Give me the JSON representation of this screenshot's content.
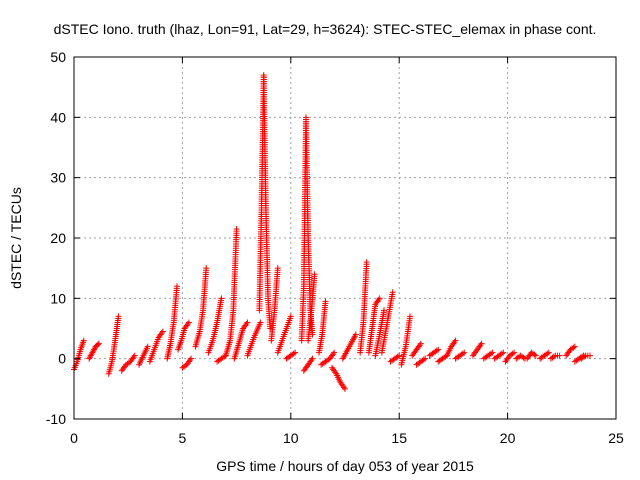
{
  "chart_data": {
    "type": "scatter",
    "title": "dSTEC Iono. truth (lhaz, Lon=91, Lat=29, h=3624): STEC-STEC_elemax in phase cont.",
    "xlabel": "GPS time / hours of day 053 of year 2015",
    "ylabel": "dSTEC  / TECUs",
    "xlim": [
      0,
      25
    ],
    "ylim": [
      -10,
      50
    ],
    "xticks": [
      0,
      5,
      10,
      15,
      20,
      25
    ],
    "yticks": [
      -10,
      0,
      10,
      20,
      30,
      40,
      50
    ],
    "grid": true,
    "marker": "plus",
    "series_color": "#ff0000",
    "arcs": [
      {
        "x": [
          0.0,
          0.15,
          0.3,
          0.45
        ],
        "y": [
          -1.8,
          -0.5,
          1.5,
          3.0
        ]
      },
      {
        "x": [
          0.7,
          0.85,
          1.0,
          1.15
        ],
        "y": [
          0.0,
          1.0,
          2.0,
          2.5
        ]
      },
      {
        "x": [
          1.6,
          1.75,
          1.9,
          2.05
        ],
        "y": [
          -2.5,
          -0.5,
          3.0,
          7.0
        ]
      },
      {
        "x": [
          2.2,
          2.4,
          2.6,
          2.8
        ],
        "y": [
          -2.0,
          -1.0,
          -0.5,
          0.5
        ]
      },
      {
        "x": [
          3.0,
          3.2,
          3.4
        ],
        "y": [
          -1.0,
          0.5,
          2.0
        ]
      },
      {
        "x": [
          3.5,
          3.7,
          3.9,
          4.1
        ],
        "y": [
          -0.5,
          1.5,
          3.5,
          4.5
        ]
      },
      {
        "x": [
          4.3,
          4.45,
          4.6,
          4.75
        ],
        "y": [
          0.0,
          2.5,
          6.0,
          12.0
        ]
      },
      {
        "x": [
          4.8,
          4.95,
          5.1,
          5.3
        ],
        "y": [
          1.5,
          3.0,
          5.0,
          6.0
        ]
      },
      {
        "x": [
          5.0,
          5.2,
          5.4
        ],
        "y": [
          -1.5,
          -1.0,
          0.0
        ]
      },
      {
        "x": [
          5.6,
          5.8,
          5.95,
          6.1
        ],
        "y": [
          2.0,
          4.5,
          8.0,
          15.0
        ]
      },
      {
        "x": [
          6.2,
          6.4,
          6.6,
          6.8
        ],
        "y": [
          1.0,
          3.0,
          6.0,
          10.0
        ]
      },
      {
        "x": [
          6.6,
          6.8,
          7.0
        ],
        "y": [
          -0.5,
          0.0,
          0.5
        ]
      },
      {
        "x": [
          7.0,
          7.2,
          7.35,
          7.5
        ],
        "y": [
          0.5,
          3.0,
          8.0,
          21.5
        ]
      },
      {
        "x": [
          7.4,
          7.6,
          7.8,
          8.0
        ],
        "y": [
          0.0,
          2.5,
          5.0,
          6.0
        ]
      },
      {
        "x": [
          8.0,
          8.3,
          8.6
        ],
        "y": [
          0.5,
          3.5,
          6.0
        ]
      },
      {
        "x": [
          8.55,
          8.65,
          8.75,
          8.85,
          8.95,
          9.05
        ],
        "y": [
          8.0,
          25.0,
          47.0,
          25.0,
          10.0,
          5.0
        ]
      },
      {
        "x": [
          9.1,
          9.25,
          9.4
        ],
        "y": [
          3.0,
          8.0,
          15.0
        ]
      },
      {
        "x": [
          9.4,
          9.6,
          9.8,
          10.0
        ],
        "y": [
          1.0,
          3.0,
          5.0,
          7.0
        ]
      },
      {
        "x": [
          9.8,
          10.0,
          10.2
        ],
        "y": [
          0.0,
          0.5,
          1.0
        ]
      },
      {
        "x": [
          10.5,
          10.6,
          10.7,
          10.8,
          10.9,
          11.0
        ],
        "y": [
          3.0,
          12.0,
          40.0,
          20.0,
          8.0,
          4.0
        ]
      },
      {
        "x": [
          10.6,
          10.8,
          11.0
        ],
        "y": [
          -2.0,
          -1.0,
          0.0
        ]
      },
      {
        "x": [
          10.8,
          10.95,
          11.1
        ],
        "y": [
          3.0,
          8.0,
          14.0
        ]
      },
      {
        "x": [
          11.3,
          11.45,
          11.6
        ],
        "y": [
          1.0,
          4.0,
          9.5
        ]
      },
      {
        "x": [
          11.4,
          11.6,
          11.8,
          12.0
        ],
        "y": [
          -1.0,
          -0.5,
          0.0,
          1.0
        ]
      },
      {
        "x": [
          11.9,
          12.1,
          12.3,
          12.5
        ],
        "y": [
          -1.5,
          -2.5,
          -4.0,
          -5.0
        ]
      },
      {
        "x": [
          12.4,
          12.7,
          13.0
        ],
        "y": [
          0.0,
          2.0,
          4.0
        ]
      },
      {
        "x": [
          13.2,
          13.35,
          13.5
        ],
        "y": [
          1.0,
          6.0,
          16.0
        ]
      },
      {
        "x": [
          13.6,
          13.75,
          13.9,
          14.1
        ],
        "y": [
          1.0,
          5.0,
          9.0,
          10.0
        ]
      },
      {
        "x": [
          13.9,
          14.1,
          14.3
        ],
        "y": [
          0.5,
          4.0,
          8.0
        ]
      },
      {
        "x": [
          14.2,
          14.45,
          14.7
        ],
        "y": [
          1.0,
          6.0,
          11.0
        ]
      },
      {
        "x": [
          14.6,
          14.8,
          15.0
        ],
        "y": [
          -0.5,
          0.0,
          0.5
        ]
      },
      {
        "x": [
          15.1,
          15.3,
          15.5
        ],
        "y": [
          -1.0,
          2.0,
          7.0
        ]
      },
      {
        "x": [
          15.6,
          15.8,
          16.0
        ],
        "y": [
          0.5,
          1.5,
          2.5
        ]
      },
      {
        "x": [
          15.8,
          16.0,
          16.2
        ],
        "y": [
          -1.0,
          -0.5,
          0.0
        ]
      },
      {
        "x": [
          16.4,
          16.6,
          16.8
        ],
        "y": [
          0.5,
          1.0,
          1.5
        ]
      },
      {
        "x": [
          16.8,
          17.0,
          17.2
        ],
        "y": [
          -0.5,
          0.0,
          0.5
        ]
      },
      {
        "x": [
          17.2,
          17.4,
          17.6
        ],
        "y": [
          0.5,
          2.0,
          3.0
        ]
      },
      {
        "x": [
          17.6,
          17.8,
          18.0
        ],
        "y": [
          0.0,
          0.5,
          1.0
        ]
      },
      {
        "x": [
          18.4,
          18.6,
          18.8
        ],
        "y": [
          0.5,
          1.5,
          2.5
        ]
      },
      {
        "x": [
          18.9,
          19.1,
          19.3
        ],
        "y": [
          0.0,
          0.5,
          1.0
        ]
      },
      {
        "x": [
          19.4,
          19.6,
          19.8
        ],
        "y": [
          0.0,
          0.5,
          1.0
        ]
      },
      {
        "x": [
          19.9,
          20.1,
          20.3
        ],
        "y": [
          -0.5,
          0.5,
          1.0
        ]
      },
      {
        "x": [
          20.4,
          20.6,
          20.8
        ],
        "y": [
          0.0,
          0.5,
          0.0
        ]
      },
      {
        "x": [
          20.9,
          21.1,
          21.3
        ],
        "y": [
          0.0,
          1.0,
          0.5
        ]
      },
      {
        "x": [
          21.5,
          21.7,
          21.9
        ],
        "y": [
          0.0,
          0.5,
          1.0
        ]
      },
      {
        "x": [
          22.0,
          22.2,
          22.4
        ],
        "y": [
          0.0,
          0.5,
          0.5
        ]
      },
      {
        "x": [
          22.7,
          22.9,
          23.1
        ],
        "y": [
          0.5,
          1.5,
          2.0
        ]
      },
      {
        "x": [
          23.1,
          23.3,
          23.5
        ],
        "y": [
          -0.5,
          0.0,
          0.5
        ]
      },
      {
        "x": [
          23.4,
          23.6,
          23.8
        ],
        "y": [
          0.0,
          0.5,
          0.5
        ]
      }
    ]
  }
}
